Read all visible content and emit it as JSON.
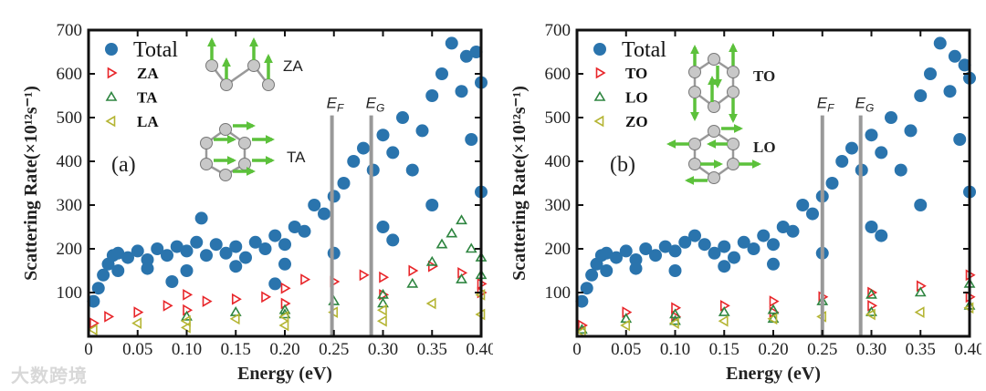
{
  "watermark": "大数跨境",
  "colors": {
    "total": "#2a74ad",
    "red": "#e8262a",
    "green": "#2e8540",
    "yellow": "#b5b534",
    "line": "#999999",
    "arrow": "#5cc13b"
  },
  "chart_data": [
    {
      "type": "scatter",
      "panel_label": "(a)",
      "xlabel": "Energy (eV)",
      "ylabel": "Scattering Rate(×10¹²s⁻¹)",
      "xlim": [
        0,
        0.4
      ],
      "ylim": [
        0,
        700
      ],
      "xticks": [
        0,
        0.05,
        0.1,
        0.15,
        0.2,
        0.25,
        0.3,
        0.35,
        0.4
      ],
      "xtick_labels": [
        "0",
        "0.05",
        "0.10",
        "0.15",
        "0.20",
        "0.25",
        "0.30",
        "0.35",
        "0.40"
      ],
      "yticks": [
        100,
        200,
        300,
        400,
        500,
        600,
        700
      ],
      "ytick_labels": [
        "100",
        "200",
        "300",
        "400",
        "500",
        "600",
        "700"
      ],
      "vlines": [
        {
          "x": 0.248,
          "label": "E",
          "sub": "F",
          "top": 505
        },
        {
          "x": 0.288,
          "label": "E",
          "sub": "G",
          "top": 505
        }
      ],
      "legend_position": "top-left",
      "insets": [
        {
          "label": "ZA"
        },
        {
          "label": "TA"
        }
      ],
      "series": [
        {
          "name": "Total",
          "marker": "circle",
          "color": "#2a74ad",
          "points": [
            [
              0.005,
              80
            ],
            [
              0.01,
              110
            ],
            [
              0.015,
              140
            ],
            [
              0.02,
              165
            ],
            [
              0.025,
              185
            ],
            [
              0.03,
              190
            ],
            [
              0.04,
              180
            ],
            [
              0.05,
              195
            ],
            [
              0.06,
              175
            ],
            [
              0.07,
              200
            ],
            [
              0.08,
              185
            ],
            [
              0.09,
              205
            ],
            [
              0.1,
              195
            ],
            [
              0.11,
              215
            ],
            [
              0.115,
              270
            ],
            [
              0.12,
              185
            ],
            [
              0.13,
              210
            ],
            [
              0.14,
              190
            ],
            [
              0.15,
              205
            ],
            [
              0.16,
              180
            ],
            [
              0.17,
              215
            ],
            [
              0.18,
              200
            ],
            [
              0.19,
              230
            ],
            [
              0.2,
              210
            ],
            [
              0.21,
              250
            ],
            [
              0.22,
              240
            ],
            [
              0.23,
              300
            ],
            [
              0.24,
              280
            ],
            [
              0.25,
              320
            ],
            [
              0.26,
              350
            ],
            [
              0.27,
              400
            ],
            [
              0.28,
              430
            ],
            [
              0.29,
              380
            ],
            [
              0.3,
              460
            ],
            [
              0.31,
              420
            ],
            [
              0.32,
              500
            ],
            [
              0.33,
              380
            ],
            [
              0.34,
              470
            ],
            [
              0.35,
              550
            ],
            [
              0.36,
              600
            ],
            [
              0.37,
              670
            ],
            [
              0.38,
              560
            ],
            [
              0.39,
              450
            ],
            [
              0.4,
              580
            ],
            [
              0.03,
              150
            ],
            [
              0.06,
              155
            ],
            [
              0.1,
              150
            ],
            [
              0.15,
              160
            ],
            [
              0.2,
              165
            ],
            [
              0.25,
              190
            ],
            [
              0.3,
              250
            ],
            [
              0.35,
              300
            ],
            [
              0.4,
              330
            ],
            [
              0.385,
              640
            ],
            [
              0.395,
              650
            ],
            [
              0.19,
              120
            ],
            [
              0.085,
              125
            ],
            [
              0.31,
              220
            ]
          ]
        },
        {
          "name": "ZA",
          "marker": "triangle-right",
          "color": "#e8262a",
          "points": [
            [
              0.005,
              30
            ],
            [
              0.02,
              45
            ],
            [
              0.05,
              55
            ],
            [
              0.08,
              70
            ],
            [
              0.1,
              95
            ],
            [
              0.12,
              80
            ],
            [
              0.15,
              85
            ],
            [
              0.18,
              90
            ],
            [
              0.2,
              110
            ],
            [
              0.22,
              130
            ],
            [
              0.25,
              125
            ],
            [
              0.28,
              140
            ],
            [
              0.3,
              135
            ],
            [
              0.33,
              150
            ],
            [
              0.35,
              160
            ],
            [
              0.38,
              145
            ],
            [
              0.4,
              120
            ],
            [
              0.1,
              60
            ],
            [
              0.2,
              75
            ],
            [
              0.3,
              95
            ],
            [
              0.4,
              100
            ]
          ]
        },
        {
          "name": "TA",
          "marker": "triangle-up",
          "color": "#2e8540",
          "points": [
            [
              0.1,
              45
            ],
            [
              0.15,
              55
            ],
            [
              0.2,
              60
            ],
            [
              0.25,
              80
            ],
            [
              0.3,
              95
            ],
            [
              0.33,
              120
            ],
            [
              0.35,
              170
            ],
            [
              0.36,
              210
            ],
            [
              0.37,
              235
            ],
            [
              0.38,
              265
            ],
            [
              0.39,
              200
            ],
            [
              0.4,
              180
            ],
            [
              0.38,
              130
            ],
            [
              0.4,
              140
            ],
            [
              0.2,
              50
            ],
            [
              0.3,
              75
            ]
          ]
        },
        {
          "name": "LA",
          "marker": "triangle-left",
          "color": "#b5b534",
          "points": [
            [
              0.005,
              15
            ],
            [
              0.05,
              30
            ],
            [
              0.1,
              35
            ],
            [
              0.15,
              40
            ],
            [
              0.2,
              45
            ],
            [
              0.25,
              55
            ],
            [
              0.3,
              60
            ],
            [
              0.35,
              75
            ],
            [
              0.4,
              95
            ],
            [
              0.1,
              20
            ],
            [
              0.2,
              25
            ],
            [
              0.3,
              35
            ],
            [
              0.4,
              50
            ]
          ]
        }
      ]
    },
    {
      "type": "scatter",
      "panel_label": "(b)",
      "xlabel": "Energy (eV)",
      "ylabel": "Scattering Rate(×10¹²s⁻¹)",
      "xlim": [
        0,
        0.4
      ],
      "ylim": [
        0,
        700
      ],
      "xticks": [
        0,
        0.05,
        0.1,
        0.15,
        0.2,
        0.25,
        0.3,
        0.35,
        0.4
      ],
      "xtick_labels": [
        "0",
        "0.05",
        "0.10",
        "0.15",
        "0.20",
        "0.25",
        "0.30",
        "0.35",
        "0.40"
      ],
      "yticks": [
        100,
        200,
        300,
        400,
        500,
        600,
        700
      ],
      "ytick_labels": [
        "100",
        "200",
        "300",
        "400",
        "500",
        "600",
        "700"
      ],
      "vlines": [
        {
          "x": 0.25,
          "label": "E",
          "sub": "F",
          "top": 505
        },
        {
          "x": 0.289,
          "label": "E",
          "sub": "G",
          "top": 505
        }
      ],
      "legend_position": "top-left",
      "insets": [
        {
          "label": "TO"
        },
        {
          "label": "LO"
        }
      ],
      "series": [
        {
          "name": "Total",
          "marker": "circle",
          "color": "#2a74ad",
          "points": [
            [
              0.005,
              80
            ],
            [
              0.01,
              110
            ],
            [
              0.015,
              140
            ],
            [
              0.02,
              165
            ],
            [
              0.025,
              185
            ],
            [
              0.03,
              190
            ],
            [
              0.04,
              180
            ],
            [
              0.05,
              195
            ],
            [
              0.06,
              175
            ],
            [
              0.07,
              200
            ],
            [
              0.08,
              185
            ],
            [
              0.09,
              205
            ],
            [
              0.1,
              195
            ],
            [
              0.11,
              215
            ],
            [
              0.12,
              230
            ],
            [
              0.13,
              210
            ],
            [
              0.14,
              190
            ],
            [
              0.15,
              205
            ],
            [
              0.16,
              180
            ],
            [
              0.17,
              215
            ],
            [
              0.18,
              200
            ],
            [
              0.19,
              230
            ],
            [
              0.2,
              210
            ],
            [
              0.21,
              250
            ],
            [
              0.22,
              240
            ],
            [
              0.23,
              300
            ],
            [
              0.24,
              280
            ],
            [
              0.25,
              320
            ],
            [
              0.26,
              350
            ],
            [
              0.27,
              400
            ],
            [
              0.28,
              430
            ],
            [
              0.29,
              380
            ],
            [
              0.3,
              460
            ],
            [
              0.31,
              420
            ],
            [
              0.32,
              500
            ],
            [
              0.33,
              380
            ],
            [
              0.34,
              470
            ],
            [
              0.35,
              550
            ],
            [
              0.36,
              600
            ],
            [
              0.37,
              670
            ],
            [
              0.38,
              560
            ],
            [
              0.39,
              450
            ],
            [
              0.4,
              590
            ],
            [
              0.03,
              150
            ],
            [
              0.06,
              155
            ],
            [
              0.1,
              150
            ],
            [
              0.15,
              160
            ],
            [
              0.2,
              165
            ],
            [
              0.25,
              190
            ],
            [
              0.3,
              250
            ],
            [
              0.35,
              300
            ],
            [
              0.4,
              330
            ],
            [
              0.385,
              640
            ],
            [
              0.395,
              620
            ],
            [
              0.31,
              230
            ]
          ]
        },
        {
          "name": "TO",
          "marker": "triangle-right",
          "color": "#e8262a",
          "points": [
            [
              0.005,
              25
            ],
            [
              0.05,
              55
            ],
            [
              0.1,
              65
            ],
            [
              0.15,
              70
            ],
            [
              0.2,
              80
            ],
            [
              0.25,
              90
            ],
            [
              0.3,
              100
            ],
            [
              0.35,
              115
            ],
            [
              0.4,
              140
            ],
            [
              0.1,
              45
            ],
            [
              0.2,
              55
            ],
            [
              0.3,
              70
            ],
            [
              0.4,
              90
            ]
          ]
        },
        {
          "name": "LO",
          "marker": "triangle-up",
          "color": "#2e8540",
          "points": [
            [
              0.005,
              15
            ],
            [
              0.05,
              40
            ],
            [
              0.1,
              50
            ],
            [
              0.15,
              55
            ],
            [
              0.2,
              60
            ],
            [
              0.25,
              80
            ],
            [
              0.3,
              95
            ],
            [
              0.35,
              100
            ],
            [
              0.4,
              120
            ],
            [
              0.1,
              35
            ],
            [
              0.2,
              40
            ],
            [
              0.3,
              55
            ],
            [
              0.4,
              70
            ]
          ]
        },
        {
          "name": "ZO",
          "marker": "triangle-left",
          "color": "#b5b534",
          "points": [
            [
              0.005,
              10
            ],
            [
              0.05,
              25
            ],
            [
              0.1,
              30
            ],
            [
              0.15,
              35
            ],
            [
              0.2,
              40
            ],
            [
              0.25,
              45
            ],
            [
              0.3,
              50
            ],
            [
              0.35,
              55
            ],
            [
              0.4,
              65
            ]
          ]
        }
      ]
    }
  ]
}
